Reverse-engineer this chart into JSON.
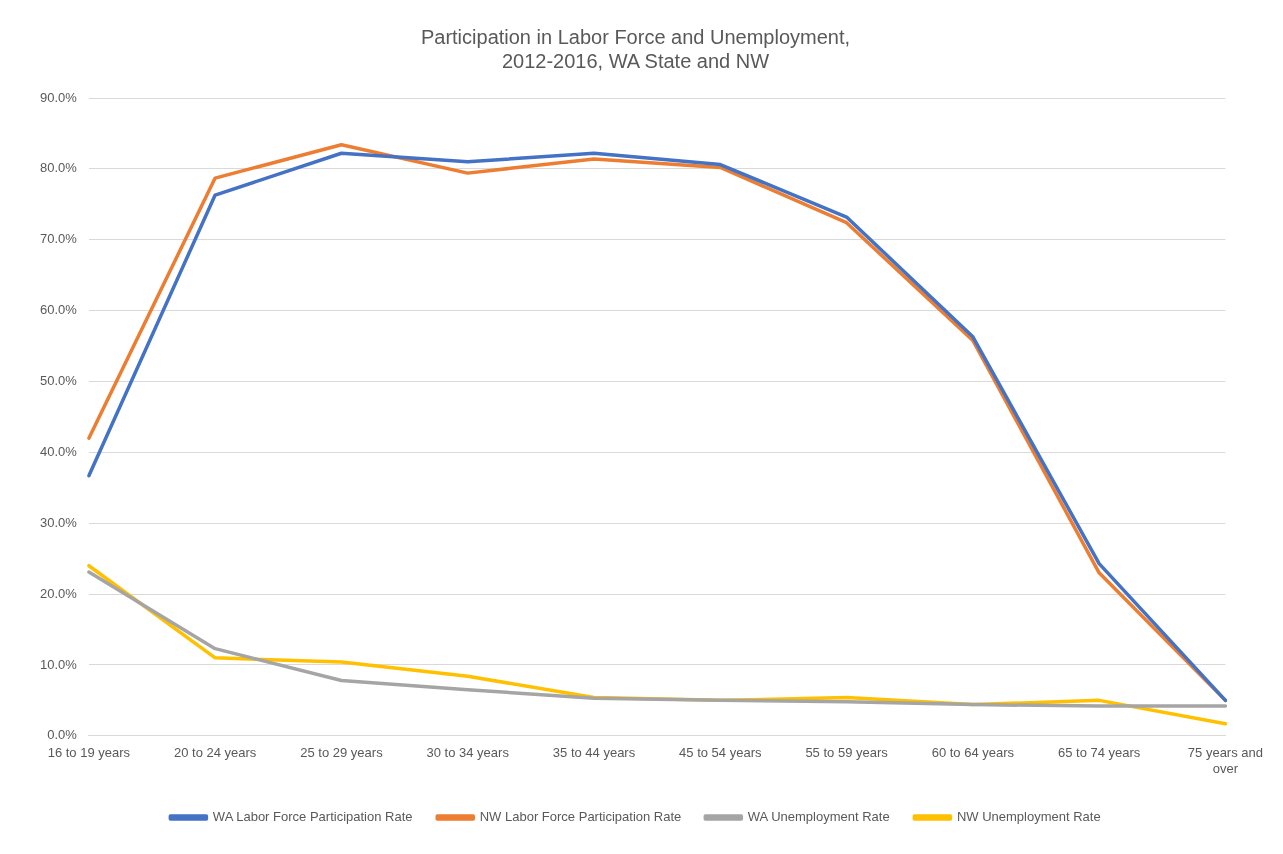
{
  "chart_data": {
    "type": "line",
    "title": "Participation in Labor Force and Unemployment,\n2012-2016, WA State and NW",
    "categories": [
      "16 to 19 years",
      "20 to 24 years",
      "25 to 29 years",
      "30 to 34 years",
      "35 to 44 years",
      "45 to 54 years",
      "55 to 59 years",
      "60 to 64 years",
      "65 to 74 years",
      "75 years and over"
    ],
    "series": [
      {
        "name": "WA Labor Force Participation Rate",
        "color": "#4472c4",
        "values": [
          36.7,
          76.3,
          82.2,
          81.0,
          82.2,
          80.6,
          73.2,
          56.3,
          24.3,
          5.0
        ]
      },
      {
        "name": "NW Labor Force Participation Rate",
        "color": "#ed7d31",
        "values": [
          42.0,
          78.7,
          83.4,
          79.4,
          81.4,
          80.2,
          72.4,
          55.8,
          23.0,
          5.0
        ]
      },
      {
        "name": "WA Unemployment Rate",
        "color": "#a5a5a5",
        "values": [
          23.1,
          12.3,
          7.8,
          6.5,
          5.3,
          5.0,
          4.8,
          4.4,
          4.2,
          4.2
        ]
      },
      {
        "name": "NW Unemployment Rate",
        "color": "#ffc000",
        "values": [
          24.0,
          11.0,
          10.4,
          8.4,
          5.4,
          5.0,
          5.4,
          4.4,
          5.0,
          1.7
        ]
      }
    ],
    "ylim": [
      0,
      90
    ],
    "yticks": [
      {
        "value": 0,
        "label": "0.0%"
      },
      {
        "value": 10,
        "label": "10.0%"
      },
      {
        "value": 20,
        "label": "20.0%"
      },
      {
        "value": 30,
        "label": "30.0%"
      },
      {
        "value": 40,
        "label": "40.0%"
      },
      {
        "value": 50,
        "label": "50.0%"
      },
      {
        "value": 60,
        "label": "60.0%"
      },
      {
        "value": 70,
        "label": "70.0%"
      },
      {
        "value": 80,
        "label": "80.0%"
      },
      {
        "value": 90,
        "label": "90.0%"
      }
    ],
    "grid": "y",
    "legend": "bottom",
    "marker": "none",
    "line_style": "solid"
  }
}
